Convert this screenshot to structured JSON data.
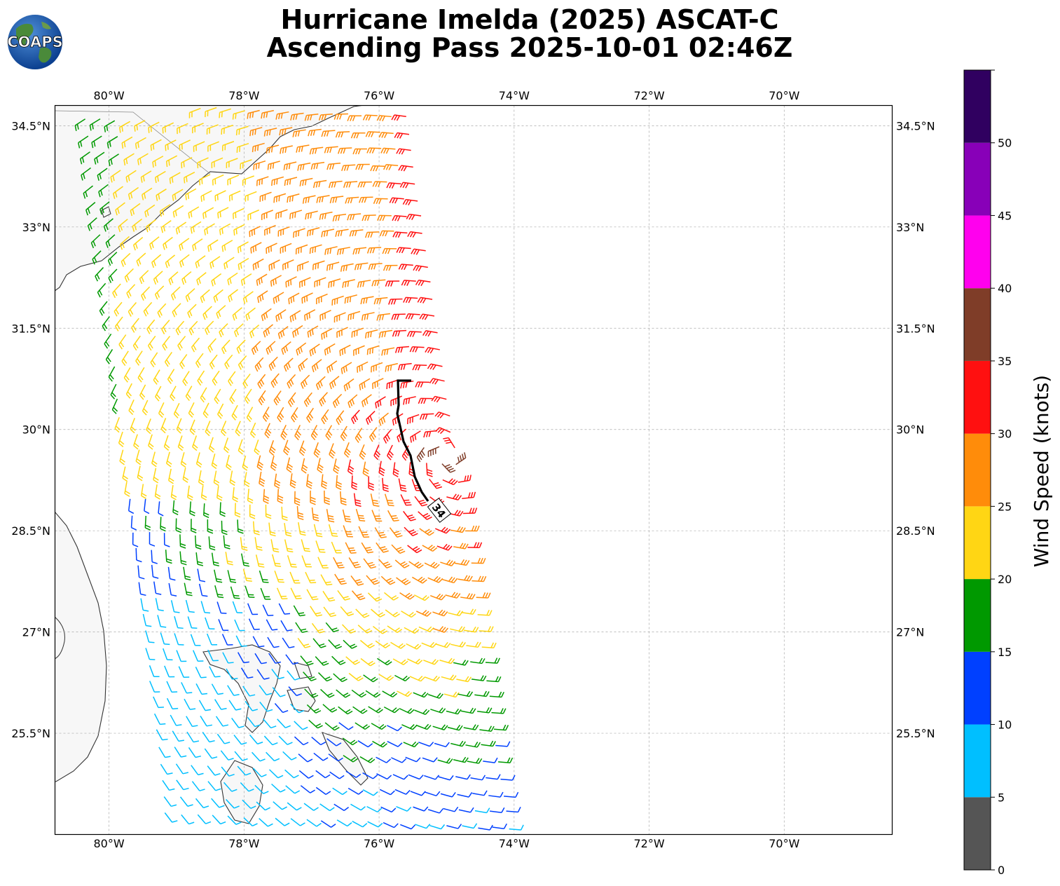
{
  "title": {
    "line1": "Hurricane Imelda (2025) ASCAT-C",
    "line2": "Ascending Pass 2025-10-01 02:46Z"
  },
  "logo": {
    "text": "COAPS",
    "icon": "globe-icon"
  },
  "map": {
    "lon_range": [
      -80.8,
      -68.4
    ],
    "lat_range": [
      24.0,
      34.8
    ],
    "lon_ticks": [
      "80°W",
      "78°W",
      "76°W",
      "74°W",
      "72°W",
      "70°W"
    ],
    "lat_ticks": [
      "34.5°N",
      "33°N",
      "31.5°N",
      "30°N",
      "28.5°N",
      "27°N",
      "25.5°N"
    ],
    "gridlines": true
  },
  "wind_radius_contour": {
    "label": "34",
    "color": "#000000"
  },
  "colorbar": {
    "label": "Wind Speed (knots)",
    "ticks": [
      "0",
      "5",
      "10",
      "15",
      "20",
      "25",
      "30",
      "35",
      "40",
      "45",
      "50"
    ],
    "bins": [
      {
        "min": 0,
        "max": 5,
        "color": "#555555"
      },
      {
        "min": 5,
        "max": 10,
        "color": "#00bfff"
      },
      {
        "min": 10,
        "max": 15,
        "color": "#0040ff"
      },
      {
        "min": 15,
        "max": 20,
        "color": "#009900"
      },
      {
        "min": 20,
        "max": 25,
        "color": "#ffd614"
      },
      {
        "min": 25,
        "max": 30,
        "color": "#ff8c0a"
      },
      {
        "min": 30,
        "max": 35,
        "color": "#ff1010"
      },
      {
        "min": 35,
        "max": 40,
        "color": "#7f3d28"
      },
      {
        "min": 40,
        "max": 45,
        "color": "#ff00ee"
      },
      {
        "min": 45,
        "max": 50,
        "color": "#8800b8"
      },
      {
        "min": 50,
        "max": 55,
        "color": "#300060"
      }
    ]
  }
}
